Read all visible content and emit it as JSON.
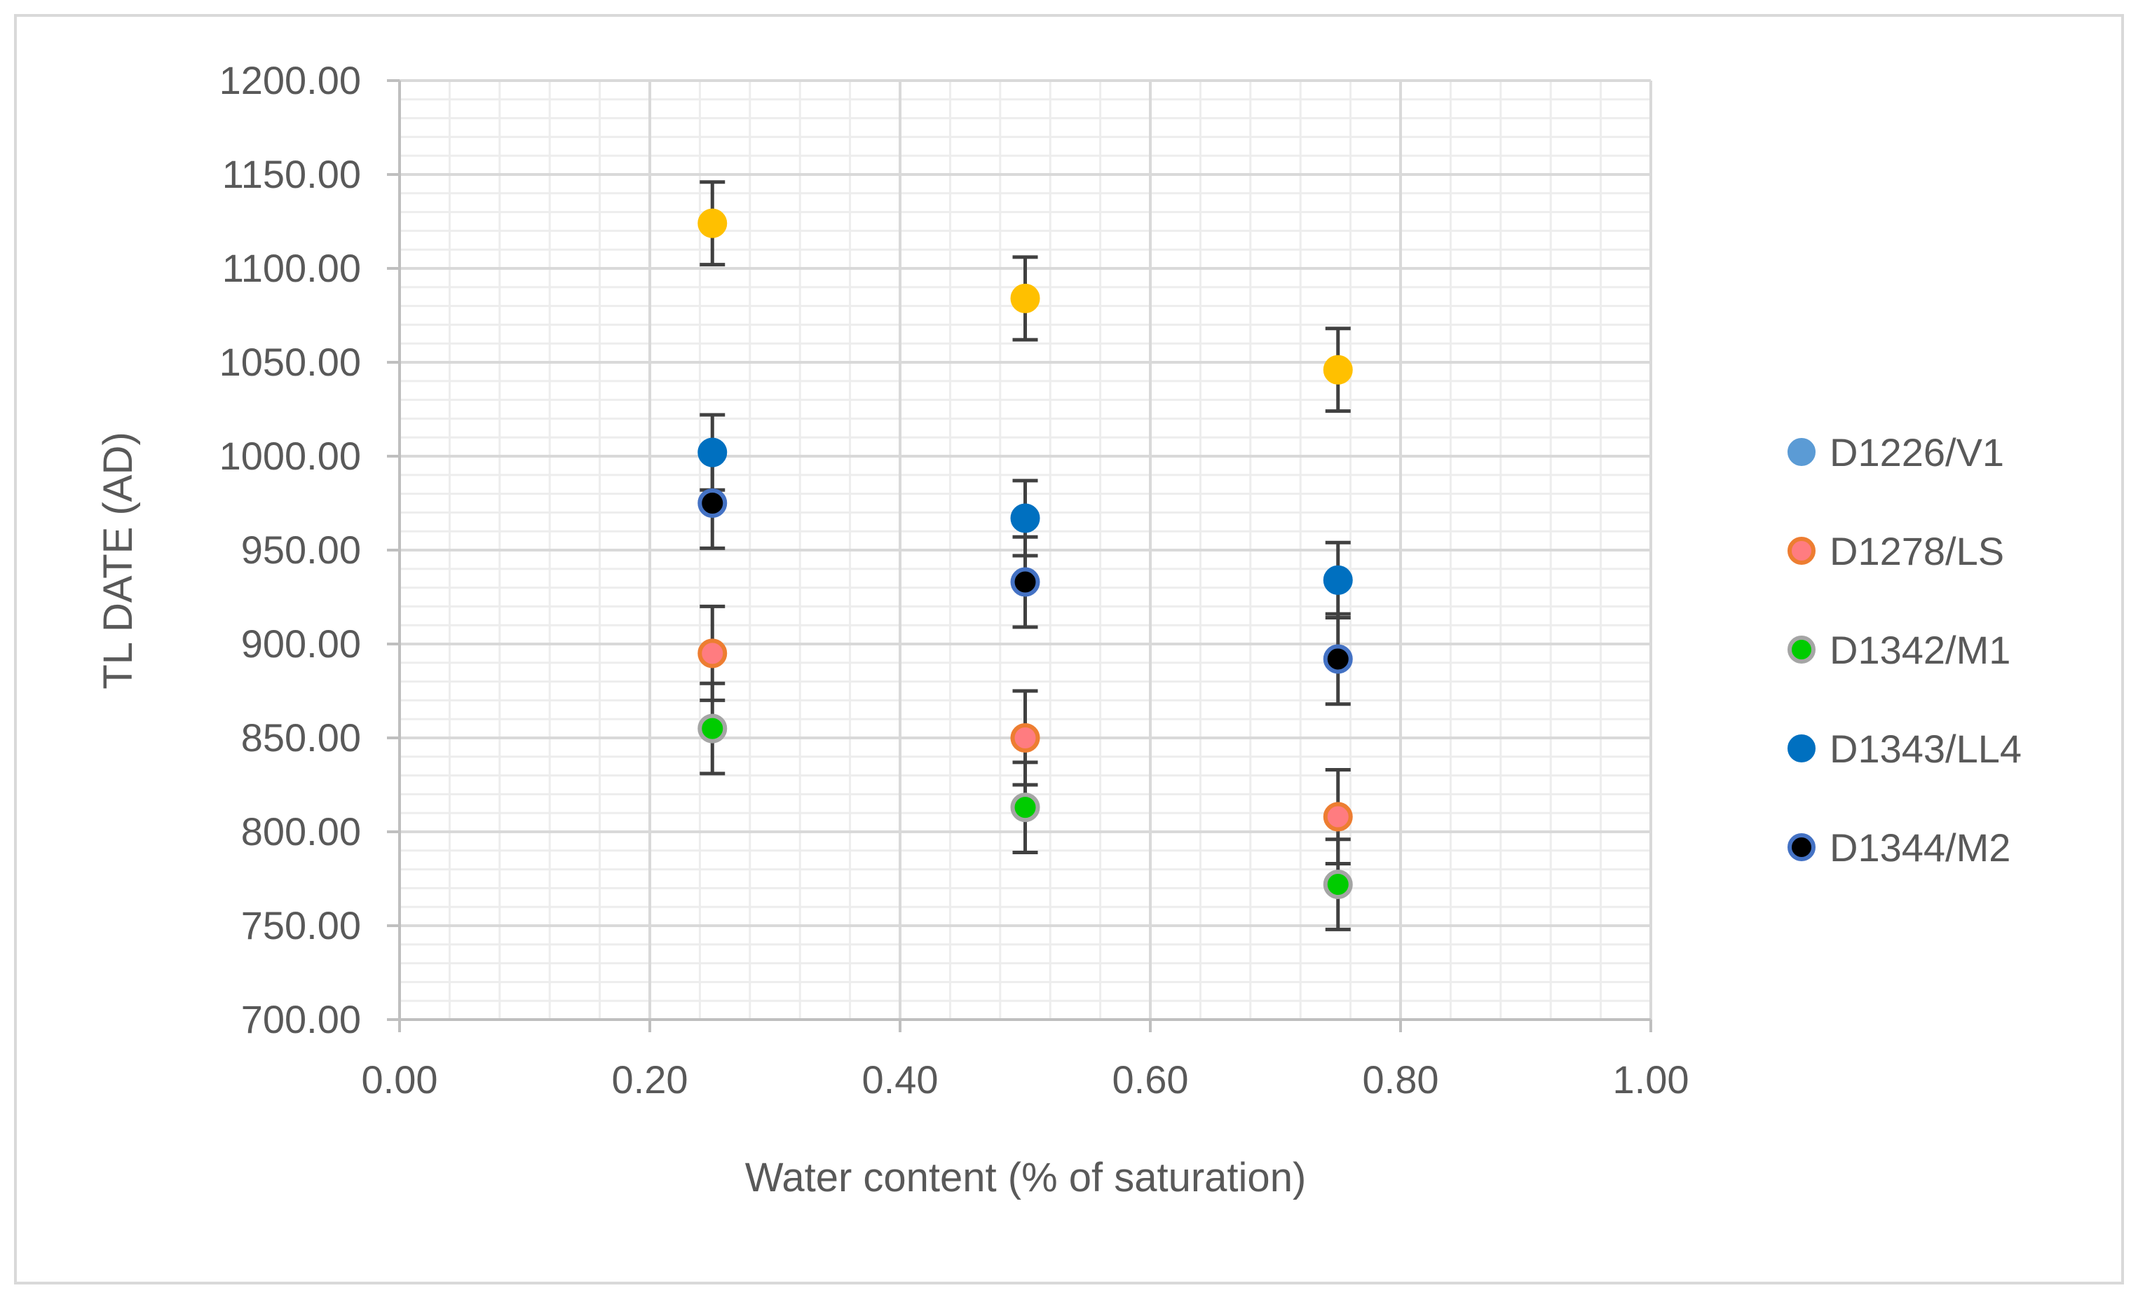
{
  "chart_data": {
    "type": "scatter",
    "title": "",
    "xlabel": "Water content (% of saturation)",
    "ylabel": "TL DATE (AD)",
    "xlim": [
      0,
      1
    ],
    "ylim": [
      700,
      1200
    ],
    "x_ticks": [
      {
        "value": 0.0,
        "label": "0.00"
      },
      {
        "value": 0.2,
        "label": "0.20"
      },
      {
        "value": 0.4,
        "label": "0.40"
      },
      {
        "value": 0.6,
        "label": "0.60"
      },
      {
        "value": 0.8,
        "label": "0.80"
      },
      {
        "value": 1.0,
        "label": "1.00"
      }
    ],
    "y_ticks": [
      {
        "value": 700,
        "label": "700.00"
      },
      {
        "value": 750,
        "label": "750.00"
      },
      {
        "value": 800,
        "label": "800.00"
      },
      {
        "value": 850,
        "label": "850.00"
      },
      {
        "value": 900,
        "label": "900.00"
      },
      {
        "value": 950,
        "label": "950.00"
      },
      {
        "value": 1000,
        "label": "1000.00"
      },
      {
        "value": 1050,
        "label": "1050.00"
      },
      {
        "value": 1100,
        "label": "1100.00"
      },
      {
        "value": 1150,
        "label": "1150.00"
      },
      {
        "value": 1200,
        "label": "1200.00"
      }
    ],
    "grid": true,
    "legend_position": "right",
    "series": [
      {
        "name": "D1226/V1",
        "fill": "#FFC000",
        "stroke": "#FFC000",
        "legend_fill": "#5B9BD5",
        "legend_stroke": "#5B9BD5",
        "points": [
          {
            "x": 0.25,
            "y": 1124,
            "err": 22
          },
          {
            "x": 0.5,
            "y": 1084,
            "err": 22
          },
          {
            "x": 0.75,
            "y": 1046,
            "err": 22
          }
        ]
      },
      {
        "name": "D1278/LS",
        "fill": "#FF7C80",
        "stroke": "#ED7D31",
        "legend_fill": "#FF7C80",
        "legend_stroke": "#ED7D31",
        "points": [
          {
            "x": 0.25,
            "y": 895,
            "err": 25
          },
          {
            "x": 0.5,
            "y": 850,
            "err": 25
          },
          {
            "x": 0.75,
            "y": 808,
            "err": 25
          }
        ]
      },
      {
        "name": "D1342/M1",
        "fill": "#00CC00",
        "stroke": "#A5A5A5",
        "legend_fill": "#00CC00",
        "legend_stroke": "#A5A5A5",
        "points": [
          {
            "x": 0.25,
            "y": 855,
            "err": 24
          },
          {
            "x": 0.5,
            "y": 813,
            "err": 24
          },
          {
            "x": 0.75,
            "y": 772,
            "err": 24
          }
        ]
      },
      {
        "name": "D1343/LL4",
        "fill": "#0070C0",
        "stroke": "#0070C0",
        "legend_fill": "#0070C0",
        "legend_stroke": "#0070C0",
        "points": [
          {
            "x": 0.25,
            "y": 1002,
            "err": 20
          },
          {
            "x": 0.5,
            "y": 967,
            "err": 20
          },
          {
            "x": 0.75,
            "y": 934,
            "err": 20
          }
        ]
      },
      {
        "name": "D1344/M2",
        "fill": "#000000",
        "stroke": "#4472C4",
        "legend_fill": "#000000",
        "legend_stroke": "#4472C4",
        "points": [
          {
            "x": 0.25,
            "y": 975,
            "err": 24
          },
          {
            "x": 0.5,
            "y": 933,
            "err": 24
          },
          {
            "x": 0.75,
            "y": 892,
            "err": 24
          }
        ]
      }
    ],
    "colors": {
      "major_grid": "#D9D9D9",
      "minor_grid": "#EDEDED",
      "axis": "#BFBFBF",
      "error_bar": "#404040",
      "text": "#595959",
      "border": "#D9D9D9"
    }
  }
}
